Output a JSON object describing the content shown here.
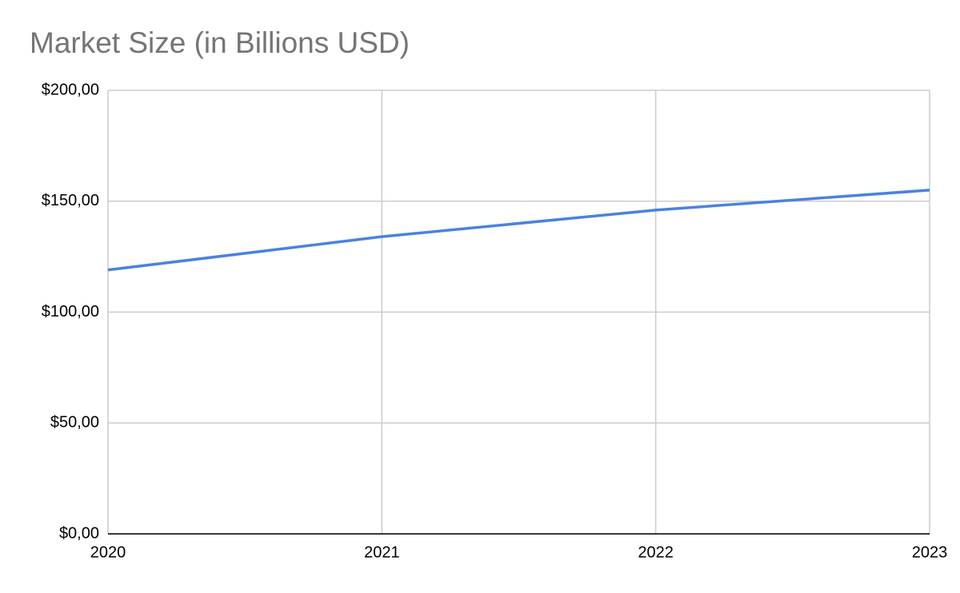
{
  "chart_data": {
    "type": "line",
    "title": "Market Size (in Billions USD)",
    "x": [
      2020,
      2021,
      2022,
      2023
    ],
    "values": [
      119,
      134,
      146,
      155
    ],
    "color": "#4a82e0",
    "xlim": [
      2020,
      2023
    ],
    "xticks": [
      2020,
      2021,
      2022,
      2023
    ],
    "ylim": [
      0,
      200
    ],
    "yticks": [
      {
        "value": 0,
        "label": "$0,00"
      },
      {
        "value": 50,
        "label": "$50,00"
      },
      {
        "value": 100,
        "label": "$100,00"
      },
      {
        "value": 150,
        "label": "$150,00"
      },
      {
        "value": 200,
        "label": "$200,00"
      }
    ],
    "grid": true
  }
}
